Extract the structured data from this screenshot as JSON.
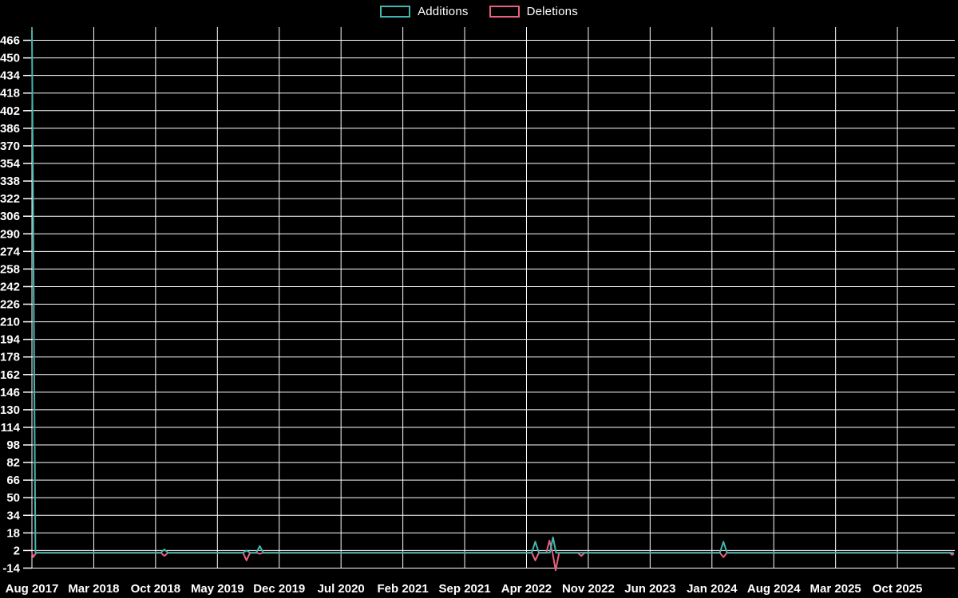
{
  "legend": {
    "items": [
      {
        "label": "Additions",
        "color": "#45b6ae"
      },
      {
        "label": "Deletions",
        "color": "#e8627f"
      }
    ]
  },
  "chart_data": {
    "type": "line",
    "title": "",
    "legend_position": "top center",
    "background_color": "#000000",
    "grid": true,
    "grid_color": "#ffffff",
    "text_color": "#ffffff",
    "x_unit": "months since Aug 2017 (weekly repo additions/deletions)",
    "x_tick_labels": [
      "Aug 2017",
      "Mar 2018",
      "Oct 2018",
      "May 2019",
      "Dec 2019",
      "Jul 2020",
      "Feb 2021",
      "Sep 2021",
      "Apr 2022",
      "Nov 2022",
      "Jun 2023",
      "Jan 2024",
      "Aug 2024",
      "Mar 2025",
      "Oct 2025"
    ],
    "x_tick_month_offsets": [
      0,
      7,
      14,
      21,
      28,
      35,
      42,
      49,
      56,
      63,
      70,
      77,
      84,
      91,
      98
    ],
    "x_drawn_range_months": [
      0,
      104.5
    ],
    "y_ticks": [
      466,
      450,
      434,
      418,
      402,
      386,
      370,
      354,
      338,
      322,
      306,
      290,
      274,
      258,
      242,
      226,
      210,
      194,
      178,
      162,
      146,
      130,
      114,
      98,
      82,
      66,
      50,
      34,
      18,
      2,
      -14
    ],
    "y_tick_step": 16,
    "y_drawn_range": [
      -18,
      478
    ],
    "series": [
      {
        "name": "Deletions",
        "color": "#e8627f",
        "points": [
          [
            0,
            0
          ],
          [
            0.15,
            -4
          ],
          [
            0.5,
            0
          ],
          [
            14.6,
            0
          ],
          [
            15,
            -3
          ],
          [
            15.4,
            0
          ],
          [
            23.9,
            0
          ],
          [
            24.3,
            -7
          ],
          [
            24.7,
            0
          ],
          [
            25.4,
            0
          ],
          [
            25.8,
            -1
          ],
          [
            26.2,
            0
          ],
          [
            56.6,
            0
          ],
          [
            57,
            -7
          ],
          [
            57.4,
            0
          ],
          [
            58.25,
            0
          ],
          [
            58.6,
            11
          ],
          [
            58.95,
            0
          ],
          [
            59.3,
            -16
          ],
          [
            59.7,
            0
          ],
          [
            61.8,
            0
          ],
          [
            62.2,
            -3
          ],
          [
            62.6,
            0
          ],
          [
            77.9,
            0
          ],
          [
            78.3,
            -4
          ],
          [
            78.7,
            0
          ],
          [
            103.9,
            0
          ],
          [
            104.2,
            -2
          ],
          [
            104.35,
            -1
          ]
        ]
      },
      {
        "name": "Additions",
        "color": "#45b6ae",
        "points": [
          [
            0,
            475
          ],
          [
            0.4,
            0
          ],
          [
            14.6,
            0
          ],
          [
            15,
            3
          ],
          [
            15.4,
            0
          ],
          [
            23.9,
            0
          ],
          [
            24.3,
            2
          ],
          [
            24.7,
            0
          ],
          [
            25.4,
            0
          ],
          [
            25.8,
            6
          ],
          [
            26.2,
            0
          ],
          [
            56.6,
            0
          ],
          [
            57,
            10
          ],
          [
            57.4,
            0
          ],
          [
            58.65,
            0
          ],
          [
            59,
            14
          ],
          [
            59.35,
            0
          ],
          [
            77.9,
            0
          ],
          [
            78.3,
            10
          ],
          [
            78.7,
            0
          ],
          [
            104.3,
            0
          ]
        ]
      }
    ],
    "notable_events": [
      {
        "date": "Aug 2017",
        "additions": 475,
        "deletions": 4
      },
      {
        "date": "Nov 2018",
        "additions": 3,
        "deletions": 3
      },
      {
        "date": "Aug 2019",
        "additions": 2,
        "deletions": 7
      },
      {
        "date": "Oct 2019",
        "additions": 6,
        "deletions": 1
      },
      {
        "date": "Apr 2022",
        "additions": 10,
        "deletions": 7
      },
      {
        "date": "Jun 2022",
        "additions": 14,
        "deletions": 16
      },
      {
        "date": "Oct 2022",
        "additions": 0,
        "deletions": 3
      },
      {
        "date": "Jan 2024",
        "additions": 10,
        "deletions": 4
      },
      {
        "date": "Nov 2025",
        "additions": 0,
        "deletions": 2
      }
    ]
  }
}
